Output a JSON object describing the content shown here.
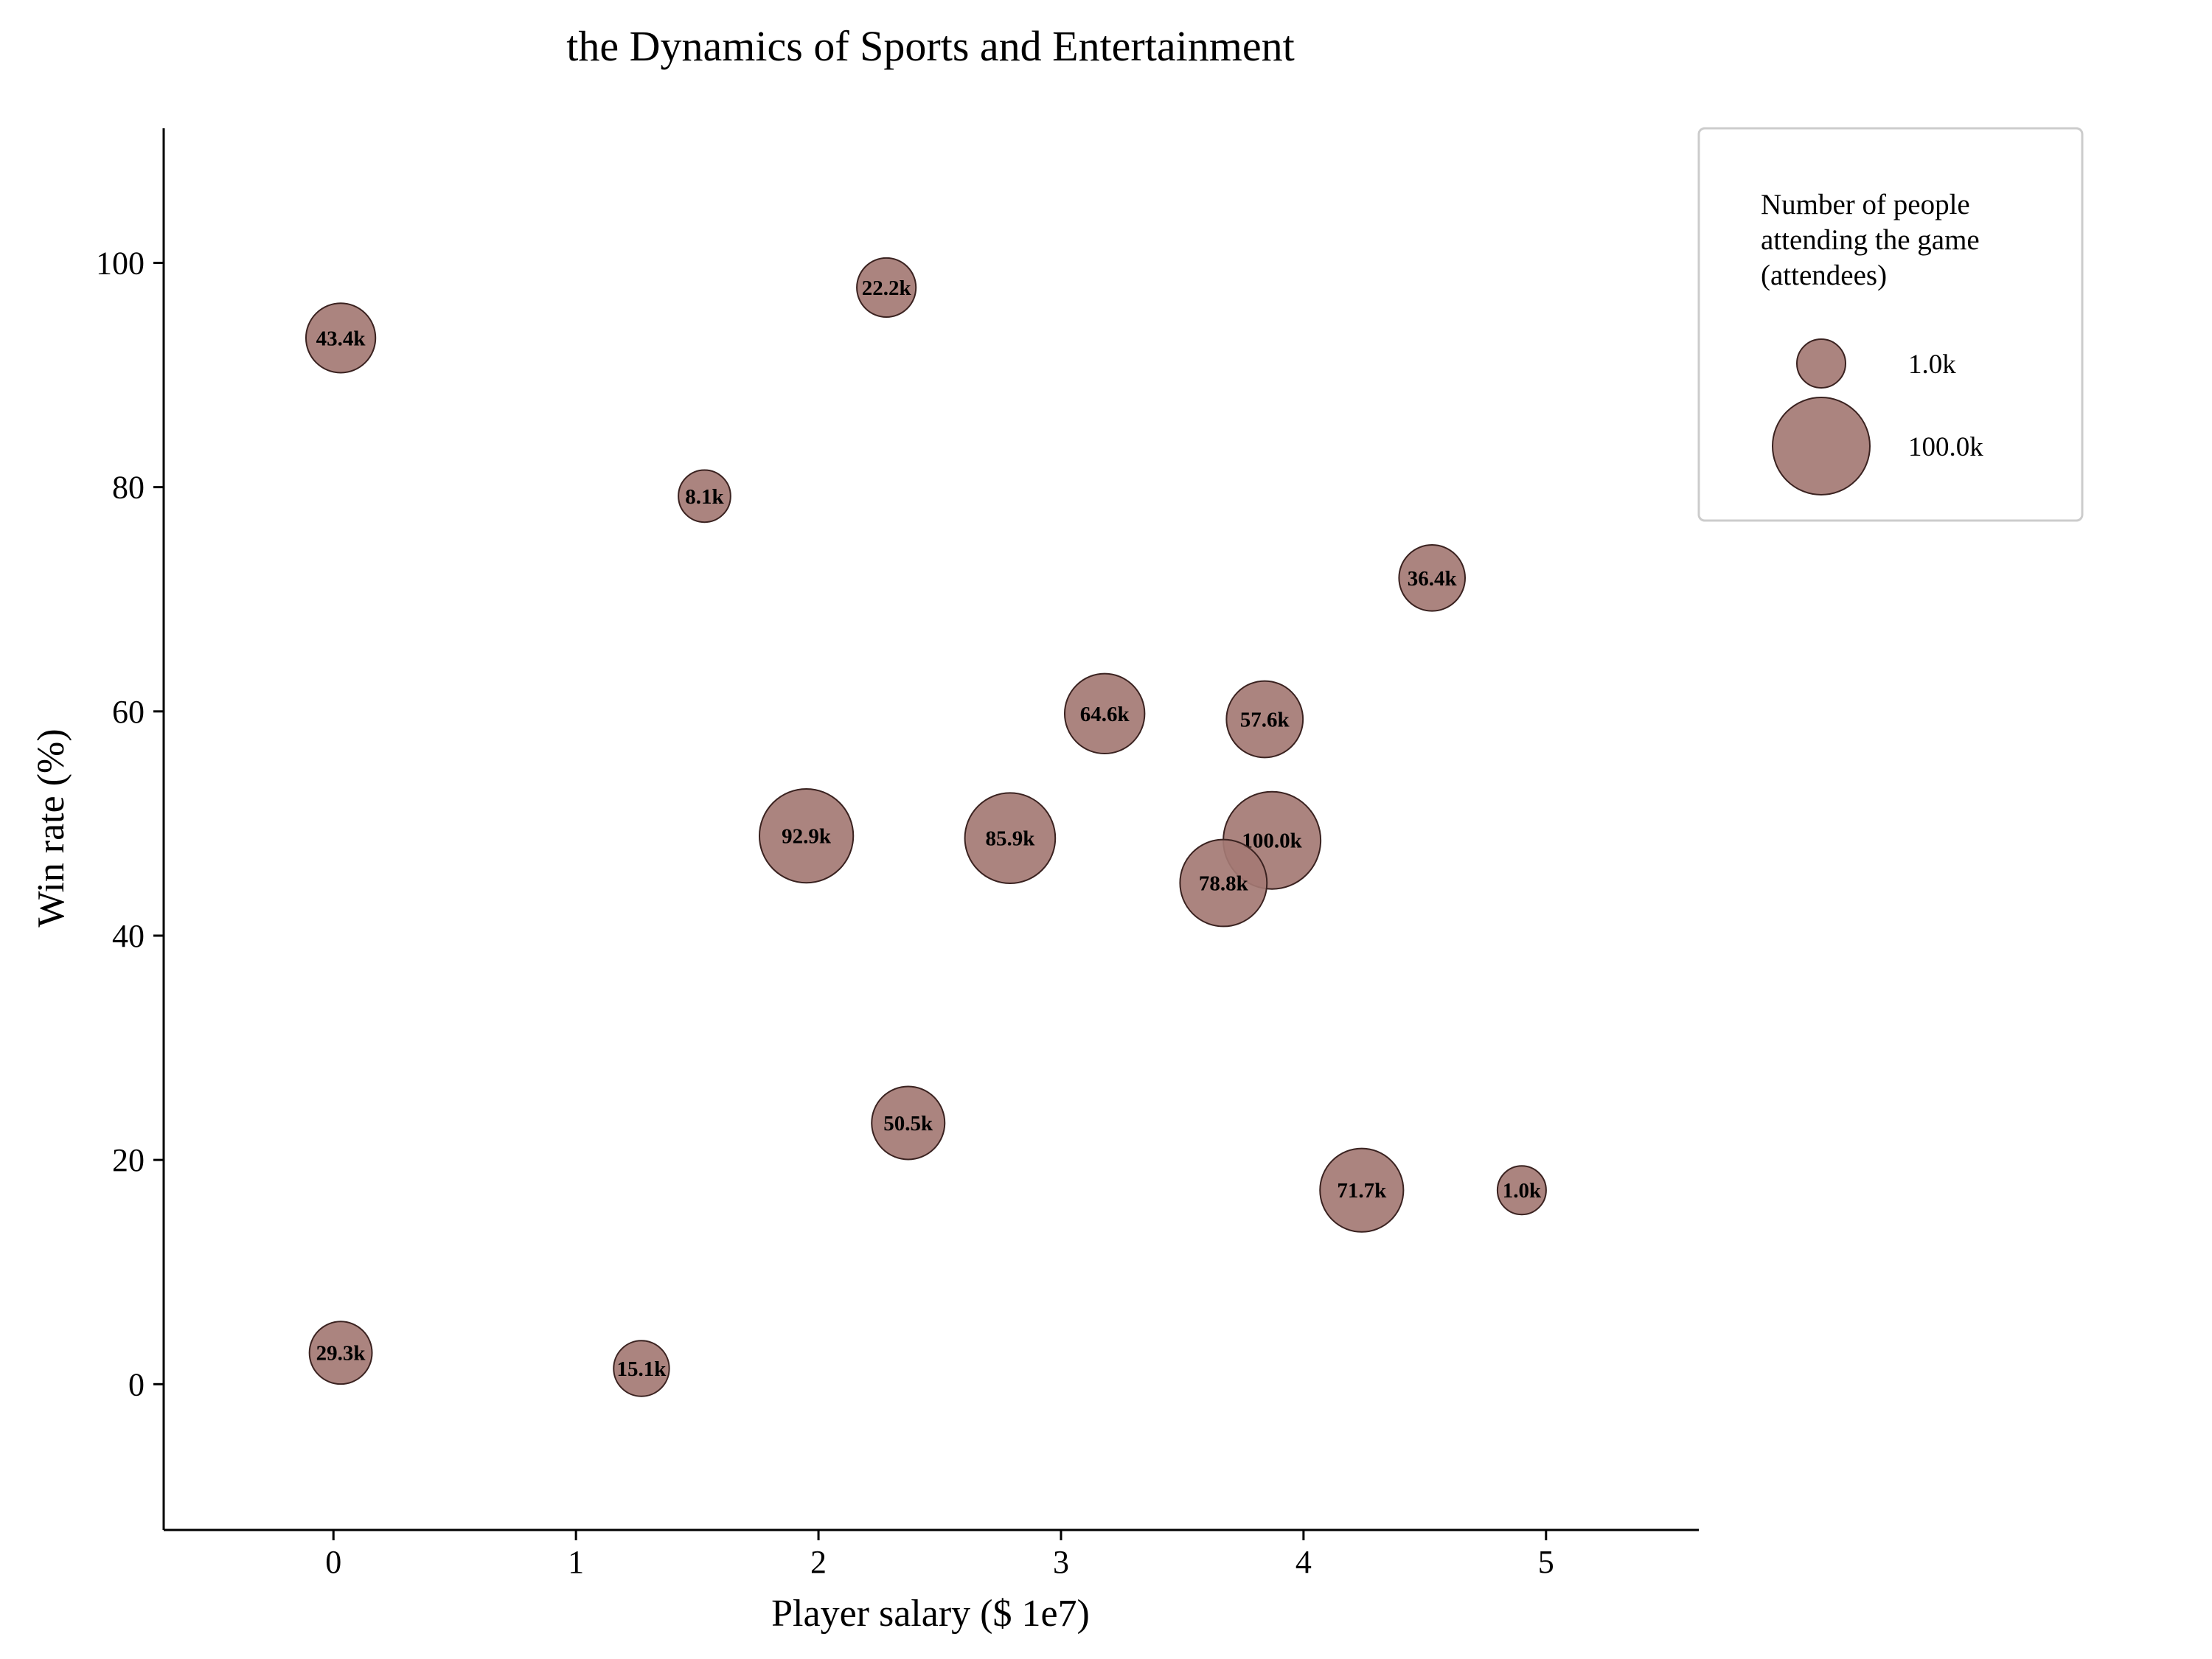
{
  "chart_data": {
    "type": "scatter",
    "title": "the Dynamics of Sports and Entertainment",
    "xlabel": "Player salary ($ 1e7)",
    "ylabel": "Win rate (%)",
    "xlim": [
      -0.7,
      5.63
    ],
    "ylim": [
      -13,
      112
    ],
    "xticks": [
      0,
      1,
      2,
      3,
      4,
      5
    ],
    "yticks": [
      0,
      20,
      40,
      60,
      80,
      100
    ],
    "grid": false,
    "bubble_color": "#a47a74",
    "bubble_edge": "#3a2220",
    "size_range": [
      1.0,
      100.0
    ],
    "legend": {
      "position": "outside-right",
      "title_lines": [
        "Number of people",
        "attending the game",
        "(attendees)"
      ],
      "entries": [
        {
          "label": "1.0k",
          "size": 1.0
        },
        {
          "label": "100.0k",
          "size": 100.0
        }
      ]
    },
    "points": [
      {
        "x": 0.03,
        "y": 93.3,
        "size": 43.4,
        "label": "43.4k"
      },
      {
        "x": 2.28,
        "y": 97.8,
        "size": 22.2,
        "label": "22.2k"
      },
      {
        "x": 1.53,
        "y": 79.2,
        "size": 8.1,
        "label": "8.1k"
      },
      {
        "x": 4.53,
        "y": 71.9,
        "size": 36.4,
        "label": "36.4k"
      },
      {
        "x": 3.18,
        "y": 59.8,
        "size": 64.6,
        "label": "64.6k"
      },
      {
        "x": 3.84,
        "y": 59.3,
        "size": 57.6,
        "label": "57.6k"
      },
      {
        "x": 1.95,
        "y": 48.9,
        "size": 92.9,
        "label": "92.9k"
      },
      {
        "x": 2.79,
        "y": 48.7,
        "size": 85.9,
        "label": "85.9k"
      },
      {
        "x": 3.87,
        "y": 48.5,
        "size": 100.0,
        "label": "100.0k"
      },
      {
        "x": 3.67,
        "y": 44.7,
        "size": 78.8,
        "label": "78.8k"
      },
      {
        "x": 2.37,
        "y": 23.3,
        "size": 50.5,
        "label": "50.5k"
      },
      {
        "x": 4.24,
        "y": 17.3,
        "size": 71.7,
        "label": "71.7k"
      },
      {
        "x": 4.9,
        "y": 17.3,
        "size": 1.0,
        "label": "1.0k"
      },
      {
        "x": 0.03,
        "y": 2.8,
        "size": 29.3,
        "label": "29.3k"
      },
      {
        "x": 1.27,
        "y": 1.4,
        "size": 15.1,
        "label": "15.1k"
      }
    ]
  }
}
